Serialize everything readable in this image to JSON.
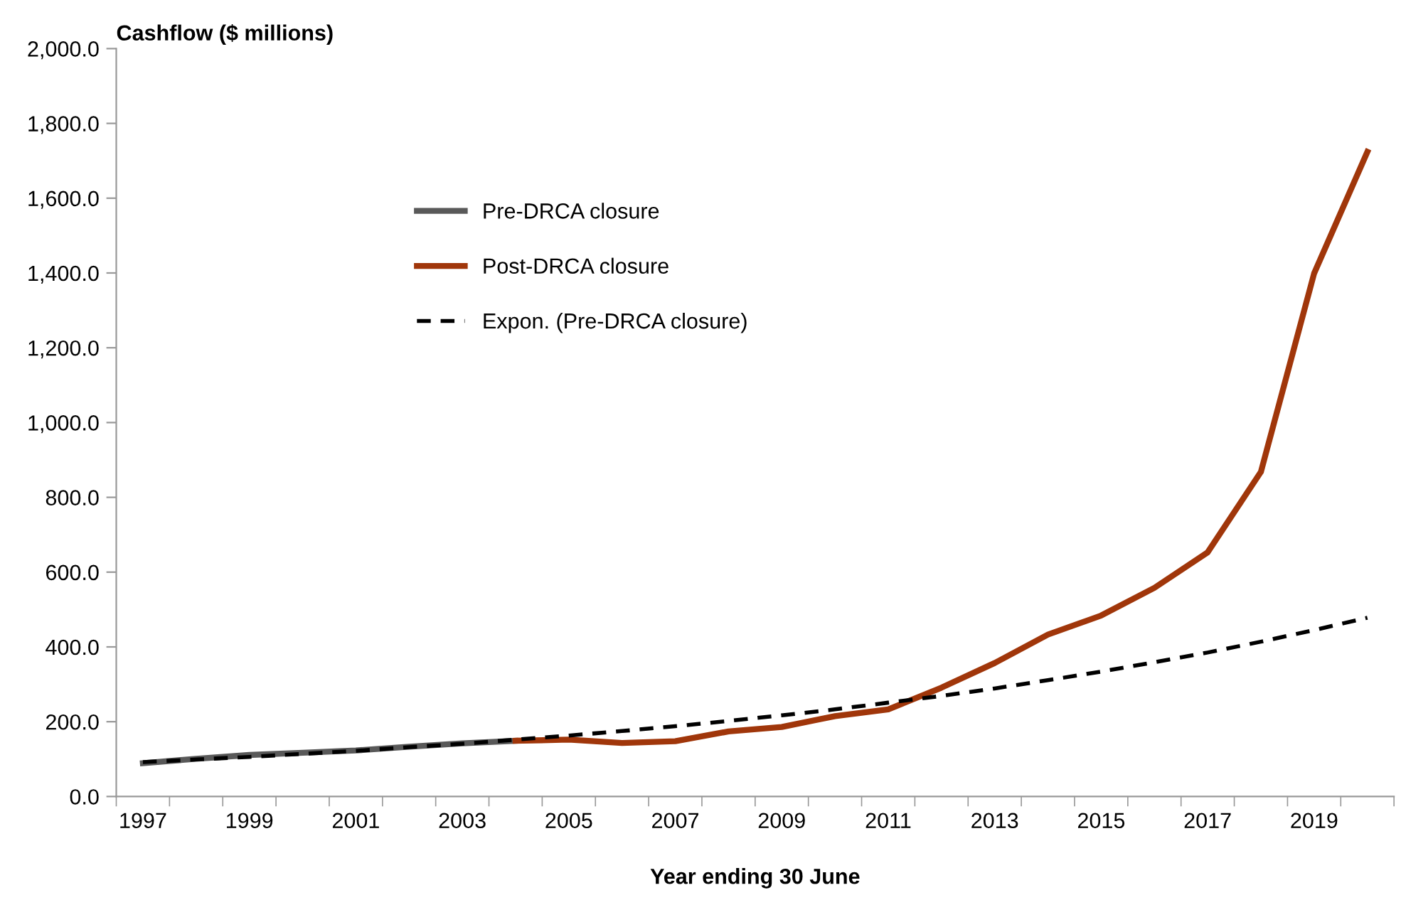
{
  "chart_data": {
    "type": "line",
    "ylabel": "Cashflow ($ millions)",
    "xlabel": "Year ending 30 June",
    "categories": [
      "1997",
      null,
      "1999",
      null,
      "2001",
      null,
      "2003",
      null,
      "2005",
      null,
      "2007",
      null,
      "2009",
      null,
      "2011",
      null,
      "2013",
      null,
      "2015",
      null,
      "2017",
      null,
      "2019",
      null
    ],
    "series": [
      {
        "name": "Pre-DRCA closure",
        "color": "#595959",
        "line_style": "solid",
        "values": [
          89,
          101,
          111,
          117,
          123,
          133,
          142,
          149,
          null,
          null,
          null,
          null,
          null,
          null,
          null,
          null,
          null,
          null,
          null,
          null,
          null,
          null,
          null,
          null
        ]
      },
      {
        "name": "Post-DRCA closure",
        "color": "#a0360a",
        "line_style": "solid",
        "values": [
          null,
          null,
          null,
          null,
          null,
          null,
          null,
          149,
          152,
          143,
          148,
          174,
          186,
          215,
          233,
          291,
          357,
          433,
          484,
          558,
          653,
          868,
          1399,
          1724
        ]
      },
      {
        "name": "Expon. (Pre-DRCA closure)",
        "color": "#000000",
        "line_style": "dashed",
        "values": [
          92,
          99,
          106,
          114,
          122,
          132,
          141,
          152,
          163,
          175,
          188,
          202,
          217,
          233,
          251,
          269,
          289,
          311,
          334,
          359,
          385,
          414,
          445,
          478
        ]
      }
    ],
    "ylim": [
      0,
      2000
    ],
    "yticks": [
      {
        "value": 0,
        "label": "0.0"
      },
      {
        "value": 200,
        "label": "200.0"
      },
      {
        "value": 400,
        "label": "400.0"
      },
      {
        "value": 600,
        "label": "600.0"
      },
      {
        "value": 800,
        "label": "800.0"
      },
      {
        "value": 1000,
        "label": "1,000.0"
      },
      {
        "value": 1200,
        "label": "1,200.0"
      },
      {
        "value": 1400,
        "label": "1,400.0"
      },
      {
        "value": 1600,
        "label": "1,600.0"
      },
      {
        "value": 1800,
        "label": "1,800.0"
      },
      {
        "value": 2000,
        "label": "2,000.0"
      }
    ],
    "grid": false,
    "legend": "top left",
    "marker": "none"
  }
}
